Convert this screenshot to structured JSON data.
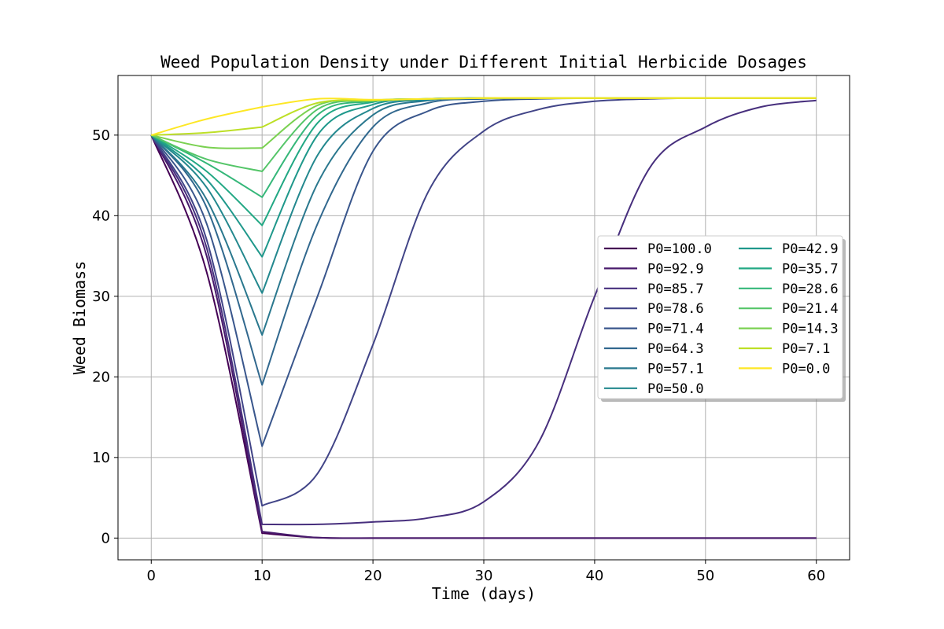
{
  "chart_data": {
    "type": "line",
    "title": "Weed Population Density under Different Initial Herbicide Dosages",
    "xlabel": "Time (days)",
    "ylabel": "Weed Biomass",
    "xlim": [
      -3,
      63
    ],
    "ylim": [
      -2.7,
      57.4
    ],
    "xticks": [
      0,
      10,
      20,
      30,
      40,
      50,
      60
    ],
    "yticks": [
      0,
      10,
      20,
      30,
      40,
      50
    ],
    "grid": true,
    "legend": {
      "location": "center-right",
      "columns": 2,
      "shadow": true
    },
    "x": [
      0,
      5,
      10,
      15,
      20,
      25,
      30,
      35,
      40,
      45,
      50,
      55,
      60
    ],
    "series": [
      {
        "name": "P0=100.0",
        "color": "#440154",
        "values": [
          50,
          33,
          0.6,
          0.05,
          0,
          0,
          0,
          0,
          0,
          0,
          0,
          0,
          0
        ]
      },
      {
        "name": "P0=92.9",
        "color": "#481a6c",
        "values": [
          50,
          35,
          0.8,
          0.05,
          0,
          0,
          0,
          0,
          0,
          0,
          0,
          0,
          0
        ]
      },
      {
        "name": "P0=85.7",
        "color": "#472f7d",
        "values": [
          50,
          36,
          1.7,
          1.7,
          2.0,
          2.5,
          4.5,
          12,
          30,
          46,
          51,
          53.5,
          54.3
        ]
      },
      {
        "name": "P0=78.6",
        "color": "#414487",
        "values": [
          50,
          37,
          4.0,
          8.0,
          24,
          43,
          50.5,
          53.2,
          54.2,
          54.5,
          54.6,
          54.6,
          54.6
        ]
      },
      {
        "name": "P0=71.4",
        "color": "#39568c",
        "values": [
          50,
          39,
          11.4,
          30,
          48,
          53,
          54.2,
          54.5,
          54.6,
          54.6,
          54.6,
          54.6,
          54.6
        ]
      },
      {
        "name": "P0=64.3",
        "color": "#31688e",
        "values": [
          50,
          41,
          19,
          39,
          51,
          54,
          54.5,
          54.6,
          54.6,
          54.6,
          54.6,
          54.6,
          54.6
        ]
      },
      {
        "name": "P0=57.1",
        "color": "#2a788e",
        "values": [
          50,
          42,
          25.2,
          44,
          52.5,
          54.3,
          54.6,
          54.6,
          54.6,
          54.6,
          54.6,
          54.6,
          54.6
        ]
      },
      {
        "name": "P0=50.0",
        "color": "#23888e",
        "values": [
          50,
          43.5,
          30.4,
          47.5,
          53.3,
          54.4,
          54.6,
          54.6,
          54.6,
          54.6,
          54.6,
          54.6,
          54.6
        ]
      },
      {
        "name": "P0=42.9",
        "color": "#1f988b",
        "values": [
          50,
          44.5,
          34.9,
          50,
          53.8,
          54.5,
          54.6,
          54.6,
          54.6,
          54.6,
          54.6,
          54.6,
          54.6
        ]
      },
      {
        "name": "P0=35.7",
        "color": "#22a884",
        "values": [
          50,
          45.5,
          38.8,
          51.5,
          54.1,
          54.5,
          54.6,
          54.6,
          54.6,
          54.6,
          54.6,
          54.6,
          54.6
        ]
      },
      {
        "name": "P0=28.6",
        "color": "#35b779",
        "values": [
          50,
          46.5,
          42.3,
          52.5,
          54.2,
          54.5,
          54.6,
          54.6,
          54.6,
          54.6,
          54.6,
          54.6,
          54.6
        ]
      },
      {
        "name": "P0=21.4",
        "color": "#54c568",
        "values": [
          50,
          47,
          45.5,
          53.2,
          54.3,
          54.5,
          54.6,
          54.6,
          54.6,
          54.6,
          54.6,
          54.6,
          54.6
        ]
      },
      {
        "name": "P0=14.3",
        "color": "#7ad151",
        "values": [
          50,
          48.5,
          48.4,
          53.7,
          54.3,
          54.5,
          54.6,
          54.6,
          54.6,
          54.6,
          54.6,
          54.6,
          54.6
        ]
      },
      {
        "name": "P0=7.1",
        "color": "#bddf26",
        "values": [
          50,
          50.3,
          51.0,
          54.0,
          54.3,
          54.5,
          54.6,
          54.6,
          54.6,
          54.6,
          54.6,
          54.6,
          54.6
        ]
      },
      {
        "name": "P0=0.0",
        "color": "#fde725",
        "values": [
          50,
          52.0,
          53.5,
          54.5,
          54.4,
          54.5,
          54.6,
          54.6,
          54.6,
          54.6,
          54.6,
          54.6,
          54.6
        ]
      }
    ]
  }
}
